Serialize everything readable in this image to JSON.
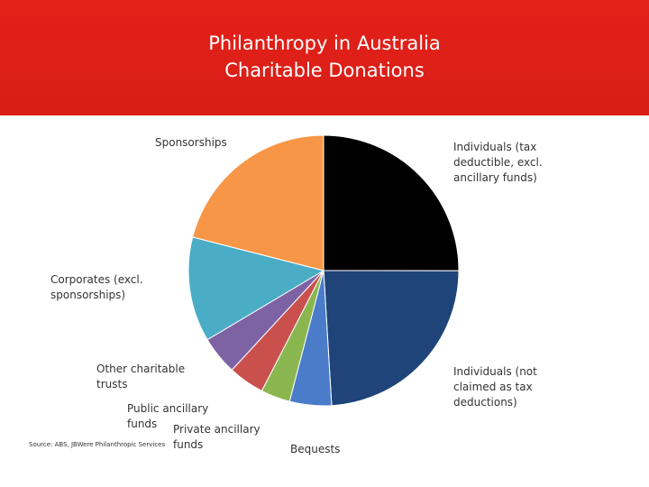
{
  "chart_data": {
    "type": "pie",
    "title": "Philanthropy in Australia",
    "subtitle": "Charitable Donations",
    "source": "Source: ABS, JBWere Philanthropic Services",
    "categories": [
      "Individuals (tax deductible, excl. ancillary funds)",
      "Individuals (not claimed as tax deductions)",
      "Bequests",
      "Private ancillary funds",
      "Public ancillary funds",
      "Other charitable trusts",
      "Corporates (excl. sponsorships)",
      "Sponsorships"
    ],
    "values": [
      25,
      24,
      5,
      3.5,
      4.3,
      4.6,
      12.5,
      21
    ],
    "colors": [
      "#000000",
      "#1f4479",
      "#4a7cc9",
      "#8ab650",
      "#c9504c",
      "#7d63a4",
      "#4bacc6",
      "#f79646"
    ]
  }
}
